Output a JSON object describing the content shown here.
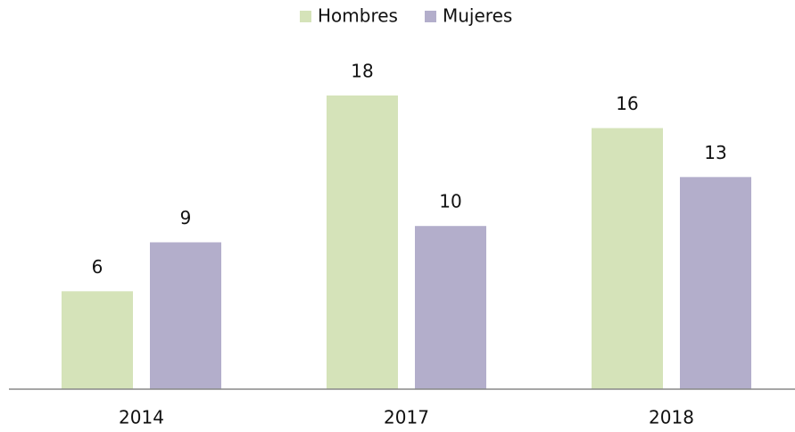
{
  "chart_data": {
    "type": "bar",
    "categories": [
      "2014",
      "2017",
      "2018"
    ],
    "series": [
      {
        "name": "Hombres",
        "color": "#d5e3b9",
        "values": [
          6,
          18,
          16
        ]
      },
      {
        "name": "Mujeres",
        "color": "#b3aecb",
        "values": [
          9,
          10,
          13
        ]
      }
    ],
    "ylim": [
      0,
      20
    ],
    "legend": "top"
  }
}
